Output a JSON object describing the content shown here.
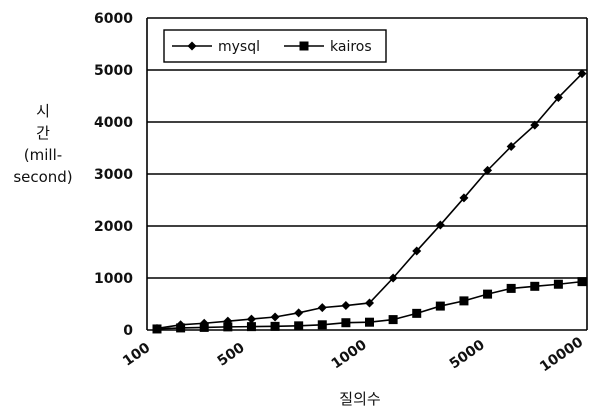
{
  "chart_data": {
    "type": "line",
    "ylabel_lines": [
      "시",
      "간",
      "(mill-",
      "second)"
    ],
    "xlabel": "질의수",
    "yticks": [
      "0",
      "1000",
      "2000",
      "3000",
      "4000",
      "5000",
      "6000"
    ],
    "ylim": [
      0,
      6000
    ],
    "xticks": [
      "100",
      "500",
      "1000",
      "5000",
      "10000"
    ],
    "grid": "horizontal",
    "legend_position": "top-left",
    "series": [
      {
        "name": "mysql",
        "marker": "diamond",
        "color": "#000000",
        "values": [
          30,
          100,
          130,
          170,
          210,
          250,
          330,
          430,
          470,
          520,
          1000,
          1520,
          2020,
          2540,
          3070,
          3530,
          3940,
          4470,
          4930
        ]
      },
      {
        "name": "kairos",
        "marker": "square",
        "color": "#000000",
        "values": [
          20,
          40,
          50,
          60,
          65,
          70,
          80,
          100,
          140,
          150,
          200,
          320,
          460,
          560,
          690,
          800,
          840,
          880,
          930
        ]
      }
    ]
  }
}
